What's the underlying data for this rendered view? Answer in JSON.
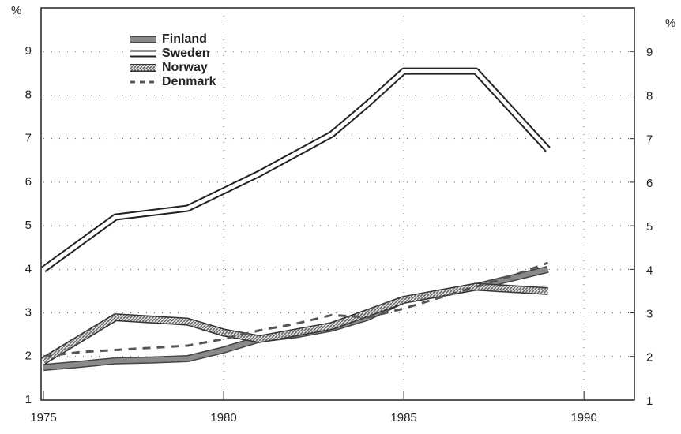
{
  "chart_data": {
    "type": "line",
    "y_label": "%",
    "y2_label": "%",
    "x": [
      1975,
      1976,
      1977,
      1978,
      1979,
      1980,
      1981,
      1982,
      1983,
      1984,
      1985,
      1986,
      1987,
      1988,
      1989
    ],
    "series": [
      {
        "name": "Finland",
        "color": "#8a8a8a",
        "values": [
          1.75,
          1.82,
          1.9,
          1.92,
          1.95,
          2.15,
          2.4,
          2.5,
          2.65,
          2.9,
          3.3,
          3.45,
          3.6,
          3.8,
          4.0
        ]
      },
      {
        "name": "Sweden",
        "color": "#ffffff",
        "values": [
          4.0,
          4.6,
          5.2,
          5.3,
          5.4,
          5.8,
          6.2,
          6.65,
          7.1,
          7.8,
          8.55,
          8.55,
          8.55,
          7.65,
          6.75
        ]
      },
      {
        "name": "Norway",
        "color": "#bdbdbd",
        "values": [
          1.9,
          2.4,
          2.9,
          2.85,
          2.8,
          2.55,
          2.4,
          2.55,
          2.7,
          3.0,
          3.3,
          3.45,
          3.6,
          3.55,
          3.5
        ]
      },
      {
        "name": "Denmark",
        "color": "#555555",
        "values": [
          2.0,
          2.1,
          2.15,
          2.2,
          2.25,
          2.4,
          2.6,
          2.75,
          2.95,
          2.9,
          3.1,
          3.35,
          3.6,
          3.85,
          4.15
        ]
      }
    ],
    "xlim": [
      1975,
      1991.4
    ],
    "xticks": [
      1975,
      1980,
      1985,
      1990
    ],
    "ylim": [
      1,
      10
    ],
    "yticks": [
      1,
      2,
      3,
      4,
      5,
      6,
      7,
      8,
      9
    ],
    "y2lim": [
      1,
      10
    ],
    "y2ticks": [
      1,
      2,
      3,
      4,
      5,
      6,
      7,
      8,
      9
    ],
    "grid": true
  }
}
